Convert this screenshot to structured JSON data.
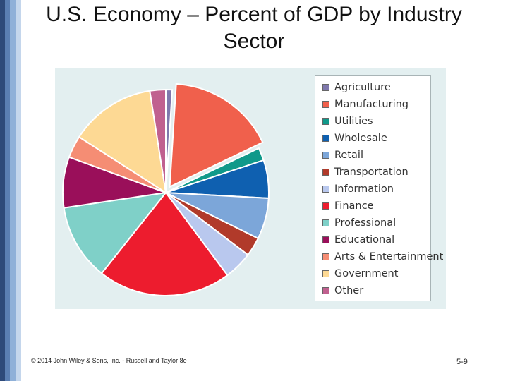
{
  "slide": {
    "title": "U.S. Economy – Percent of GDP by Industry Sector",
    "footer": "© 2014 John Wiley & Sons, Inc. - Russell and Taylor 8e",
    "page_number": "5-9",
    "side_bar_colors": [
      "#2e4a7a",
      "#5b7fb3",
      "#8fb0d8",
      "#c4d6ec"
    ],
    "panel_background": "#e3eff0"
  },
  "chart_data": {
    "type": "pie",
    "title": "",
    "exploded_slice": "Manufacturing",
    "legend_position": "right",
    "slices": [
      {
        "label": "Agriculture",
        "value": 1,
        "color": "#7f78ad"
      },
      {
        "label": "Manufacturing",
        "value": 17,
        "color": "#f0604c"
      },
      {
        "label": "Utilities",
        "value": 2,
        "color": "#10998a"
      },
      {
        "label": "Wholesale",
        "value": 6,
        "color": "#0f60b0"
      },
      {
        "label": "Retail",
        "value": 6.5,
        "color": "#7ca6d9"
      },
      {
        "label": "Transportation",
        "value": 3,
        "color": "#b13a2a"
      },
      {
        "label": "Information",
        "value": 4.5,
        "color": "#b9c8ee"
      },
      {
        "label": "Finance",
        "value": 21,
        "color": "#ed1c2e"
      },
      {
        "label": "Professional",
        "value": 12,
        "color": "#7fd0c8"
      },
      {
        "label": "Educational",
        "value": 8,
        "color": "#9a0f5a"
      },
      {
        "label": "Arts & Entertainment",
        "value": 3.5,
        "color": "#f58d74"
      },
      {
        "label": "Government",
        "value": 13.5,
        "color": "#fdd994"
      },
      {
        "label": "Other",
        "value": 2.5,
        "color": "#c0608f"
      }
    ]
  }
}
